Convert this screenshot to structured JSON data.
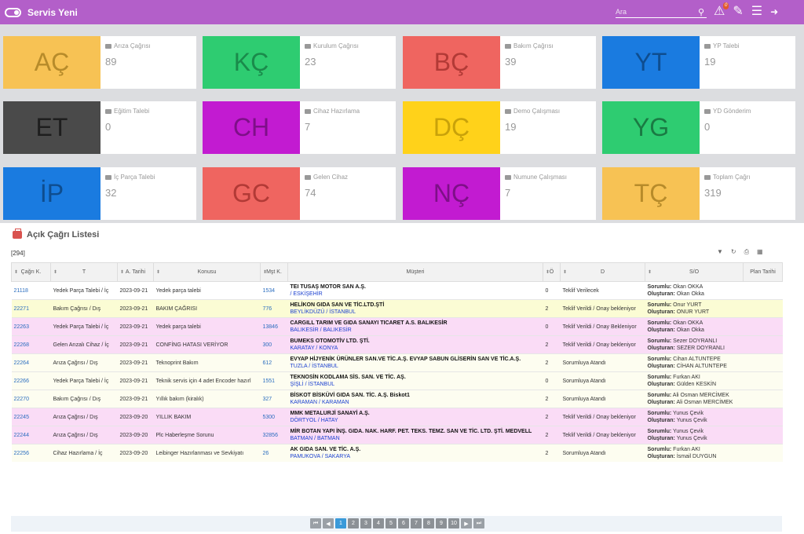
{
  "app": {
    "title": "Servis Yeni",
    "search_placeholder": "Ara",
    "alert_count": "0"
  },
  "cards": [
    {
      "abbr": "AÇ",
      "title": "Arıza Çağrısı",
      "value": "89",
      "color": "#f7c254",
      "text_color": "#b78b2a"
    },
    {
      "abbr": "KÇ",
      "title": "Kurulum Çağrısı",
      "value": "23",
      "color": "#2ecc71",
      "text_color": "#1a8a4b"
    },
    {
      "abbr": "BÇ",
      "title": "Bakım Çağrısı",
      "value": "39",
      "color": "#ef6560",
      "text_color": "#b23a36"
    },
    {
      "abbr": "YT",
      "title": "YP Talebi",
      "value": "19",
      "color": "#1a7be0",
      "text_color": "#0e4d8f"
    },
    {
      "abbr": "ET",
      "title": "Eğitim Talebi",
      "value": "0",
      "color": "#4a4a4a",
      "text_color": "#1e1e1e"
    },
    {
      "abbr": "CH",
      "title": "Cihaz Hazırlama",
      "value": "7",
      "color": "#c21bd1",
      "text_color": "#7e0f88"
    },
    {
      "abbr": "DÇ",
      "title": "Demo Çalışması",
      "value": "19",
      "color": "#ffd21a",
      "text_color": "#c9a20a"
    },
    {
      "abbr": "YG",
      "title": "YD Gönderim",
      "value": "0",
      "color": "#2ecc71",
      "text_color": "#1a7a43"
    },
    {
      "abbr": "İP",
      "title": "İç Parça Talebi",
      "value": "32",
      "color": "#1a7be0",
      "text_color": "#0e4d8f"
    },
    {
      "abbr": "GC",
      "title": "Gelen Cihaz",
      "value": "74",
      "color": "#ef6560",
      "text_color": "#b23a36"
    },
    {
      "abbr": "NÇ",
      "title": "Numune Çalışması",
      "value": "7",
      "color": "#c21bd1",
      "text_color": "#7e0f88"
    },
    {
      "abbr": "TÇ",
      "title": "Toplam Çağrı",
      "value": "319",
      "color": "#f7c254",
      "text_color": "#b78b2a"
    }
  ],
  "list": {
    "title": "Açık Çağrı Listesi",
    "count": "[294]",
    "columns": [
      "Çağrı K.",
      "T",
      "A. Tarihi",
      "Konusu",
      "Mşt K.",
      "Müşteri",
      "Ö",
      "D",
      "S/O",
      "Plan Tarihi"
    ],
    "rows": [
      {
        "style": "white",
        "id": "21118",
        "type": "Yedek Parça Talebi / İç",
        "date": "2023-09-21",
        "subject": "Yedek parça talebi",
        "mst": "1534",
        "customer": "TEI TUSAŞ MOTOR SAN A.Ş.",
        "loc": "/ ESKİŞEHİR",
        "o": "0",
        "d": "Teklif Verilecek",
        "resp": "Okan OKKA",
        "creator": "Okan Okka",
        "plan": ""
      },
      {
        "style": "yellow",
        "id": "22271",
        "type": "Bakım Çağrısı / Dış",
        "date": "2023-09-21",
        "subject": "BAKIM ÇAĞRISI",
        "mst": "776",
        "customer": "HELİKON GIDA SAN VE TİC.LTD.ŞTİ",
        "loc": "BEYLİKDÜZÜ / İSTANBUL",
        "o": "2",
        "d": "Teklif Verildi / Onay bekleniyor",
        "resp": "Onur YURT",
        "creator": "ONUR YURT",
        "plan": ""
      },
      {
        "style": "pink",
        "id": "22263",
        "type": "Yedek Parça Talebi / İç",
        "date": "2023-09-21",
        "subject": "Yedek parça talebi",
        "mst": "13846",
        "customer": "CARGILL TARIM VE GIDA SANAYI TICARET A.S. BALIKESİR",
        "loc": "BALIKESİR / BALIKESİR",
        "o": "0",
        "d": "Teklif Verildi / Onay Bekleniyor",
        "resp": "Okan OKKA",
        "creator": "Okan Okka",
        "plan": ""
      },
      {
        "style": "pink",
        "id": "22268",
        "type": "Gelen Arızalı Cihaz / İç",
        "date": "2023-09-21",
        "subject": "CONFİNG HATASI VERİYOR",
        "mst": "300",
        "customer": "BUMEKS OTOMOTİV LTD. ŞTİ.",
        "loc": "KARATAY / KONYA",
        "o": "2",
        "d": "Teklif Verildi / Onay bekleniyor",
        "resp": "Sezer DOYRANLI",
        "creator": "SEZER DOYRANLI",
        "plan": ""
      },
      {
        "style": "cream",
        "id": "22264",
        "type": "Arıza Çağrısı / Dış",
        "date": "2023-09-21",
        "subject": "Teknoprint Bakım",
        "mst": "612",
        "customer": "EVYAP HİJYENİK ÜRÜNLER SAN.VE TİC.A.Ş. EVYAP SABUN GLİSERİN SAN VE TİC.A.Ş.",
        "loc": "TUZLA / İSTANBUL",
        "o": "2",
        "d": "Sorumluya Atandı",
        "resp": "Cihan ALTUNTEPE",
        "creator": "CİHAN ALTUNTEPE",
        "plan": ""
      },
      {
        "style": "cream",
        "id": "22266",
        "type": "Yedek Parça Talebi / İç",
        "date": "2023-09-21",
        "subject": "Teknik servis için 4 adet Encoder hazırl",
        "mst": "1551",
        "customer": "TEKNOSİN KODLAMA SİS. SAN. VE TİC. AŞ.",
        "loc": "ŞİŞLİ / İSTANBUL",
        "o": "0",
        "d": "Sorumluya Atandı",
        "resp": "Furkan AKI",
        "creator": "Gülden KESKİN",
        "plan": ""
      },
      {
        "style": "cream",
        "id": "22270",
        "type": "Bakım Çağrısı / Dış",
        "date": "2023-09-21",
        "subject": "Yıllık bakım (kiralık)",
        "mst": "327",
        "customer": "BİSKOT BİSKÜVİ GIDA SAN. TİC. A.Ş. Biskot1",
        "loc": "KARAMAN / KARAMAN",
        "o": "2",
        "d": "Sorumluya Atandı",
        "resp": "Ali Osman MERCİMEK",
        "creator": "Ali Osman MERCİMEK",
        "plan": ""
      },
      {
        "style": "pink",
        "id": "22245",
        "type": "Arıza Çağrısı / Dış",
        "date": "2023-09-20",
        "subject": "YILLIK BAKIM",
        "mst": "5300",
        "customer": "MMK METALURJİ SANAYİ A.Ş.",
        "loc": "DÖRTYOL / HATAY",
        "o": "2",
        "d": "Teklif Verildi / Onay bekleniyor",
        "resp": "Yunus Çevik",
        "creator": "Yunus Çevik",
        "plan": ""
      },
      {
        "style": "pink",
        "id": "22244",
        "type": "Arıza Çağrısı / Dış",
        "date": "2023-09-20",
        "subject": "Plc Haberleşme Sorunu",
        "mst": "32856",
        "customer": "MİR BOTAN YAPI İNŞ. GIDA. NAK. HARF. PET. TEKS. TEMZ. SAN VE TİC. LTD. ŞTİ. MEDVELL",
        "loc": "BATMAN / BATMAN",
        "o": "2",
        "d": "Teklif Verildi / Onay bekleniyor",
        "resp": "Yunus Çevik",
        "creator": "Yunus Çevik",
        "plan": ""
      },
      {
        "style": "cream",
        "id": "22256",
        "type": "Cihaz Hazırlama / İç",
        "date": "2023-09-20",
        "subject": "Leibinger Hazırlanması ve Sevkiyatı",
        "mst": "26",
        "customer": "AK GIDA SAN. VE TİC. A.Ş.",
        "loc": "PAMUKOVA / SAKARYA",
        "o": "2",
        "d": "Sorumluya Atandı",
        "resp": "Furkan AKI",
        "creator": "İsmail DUYGUN",
        "plan": ""
      }
    ],
    "labels": {
      "resp": "Sorumlu:",
      "creator": "Oluşturan:"
    }
  },
  "pager": {
    "pages": [
      "1",
      "2",
      "3",
      "4",
      "5",
      "6",
      "7",
      "8",
      "9",
      "10"
    ],
    "active": "1"
  }
}
